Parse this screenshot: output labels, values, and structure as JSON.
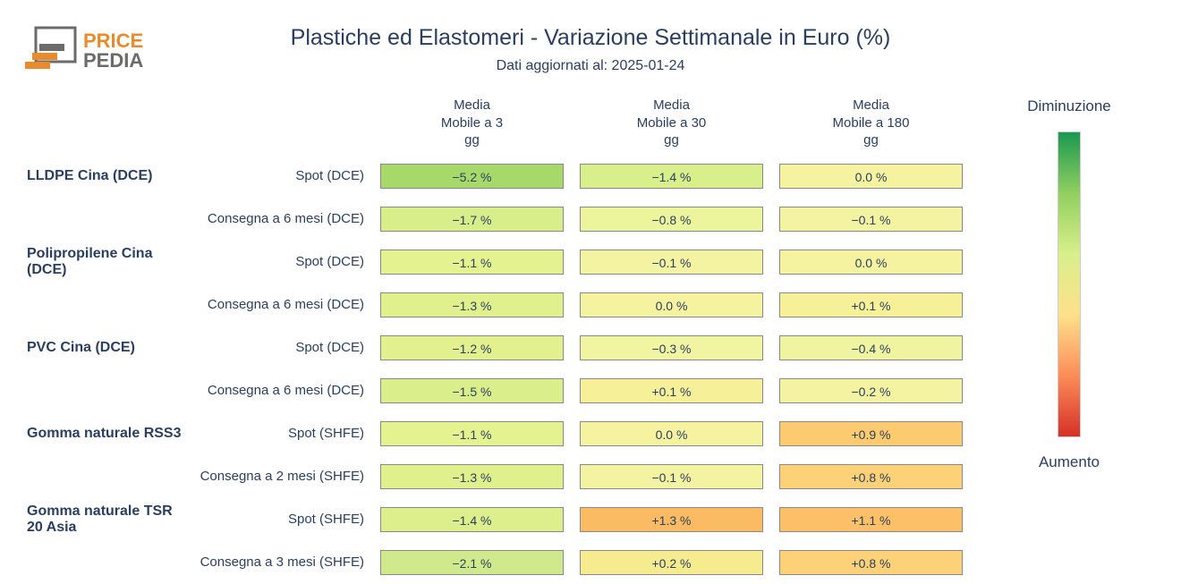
{
  "logo": {
    "text_top": "PRICE",
    "text_bottom": "PEDIA",
    "color_top": "#e88b2e",
    "color_bottom": "#6b6b6b",
    "icon_colors": {
      "outer_border": "#6b6b6b",
      "bar1": "#e88b2e",
      "bar2": "#e88b2e",
      "bar3": "#6b6b6b"
    }
  },
  "title": "Plastiche ed Elastomeri - Variazione Settimanale in Euro (%)",
  "subtitle": "Dati aggiornati al: 2025-01-24",
  "legend": {
    "top_label": "Diminuzione",
    "bottom_label": "Aumento",
    "gradient_stops": [
      "#1a9850",
      "#91cf60",
      "#d9ef8b",
      "#fee08b",
      "#fc8d59",
      "#d73027"
    ]
  },
  "columns": [
    "Media\nMobile a 3\ngg",
    "Media\nMobile a 30\ngg",
    "Media\nMobile a 180\ngg"
  ],
  "color_scale": {
    "comment": "Maps percentage value to background color (green=negative/decrease, red=positive/increase)",
    "breakpoints": [
      {
        "v": -5.5,
        "c": "#a6d96a"
      },
      {
        "v": -2.0,
        "c": "#d2e98e"
      },
      {
        "v": -1.5,
        "c": "#d9ef8b"
      },
      {
        "v": -1.0,
        "c": "#e6f392"
      },
      {
        "v": -0.5,
        "c": "#eef5a0"
      },
      {
        "v": 0.0,
        "c": "#f5f3a0"
      },
      {
        "v": 0.2,
        "c": "#f7eb90"
      },
      {
        "v": 0.5,
        "c": "#fae187"
      },
      {
        "v": 0.8,
        "c": "#fcd178"
      },
      {
        "v": 1.0,
        "c": "#fcc46a"
      },
      {
        "v": 1.5,
        "c": "#fbb460"
      }
    ]
  },
  "rows": [
    {
      "group": "LLDPE Cina (DCE)",
      "sub": "Spot (DCE)",
      "values": [
        -5.2,
        -1.4,
        0.0
      ],
      "colors": [
        "#a6d96a",
        "#d9ef8b",
        "#f5f3a0"
      ]
    },
    {
      "group": "",
      "sub": "Consegna a 6 mesi (DCE)",
      "values": [
        -1.7,
        -0.8,
        -0.1
      ],
      "colors": [
        "#d7ee8a",
        "#ecf49c",
        "#f4f3a2"
      ]
    },
    {
      "group": "Polipropilene Cina (DCE)",
      "sub": "Spot (DCE)",
      "values": [
        -1.1,
        -0.1,
        0.0
      ],
      "colors": [
        "#e4f290",
        "#f4f3a2",
        "#f5f3a0"
      ]
    },
    {
      "group": "",
      "sub": "Consegna a 6 mesi (DCE)",
      "values": [
        -1.3,
        0.0,
        0.1
      ],
      "colors": [
        "#e0f08d",
        "#f5f3a0",
        "#f6f098"
      ]
    },
    {
      "group": "PVC Cina (DCE)",
      "sub": "Spot (DCE)",
      "values": [
        -1.2,
        -0.3,
        -0.4
      ],
      "colors": [
        "#e2f18e",
        "#f1f4a1",
        "#f0f4a0"
      ]
    },
    {
      "group": "",
      "sub": "Consegna a 6 mesi (DCE)",
      "values": [
        -1.5,
        0.1,
        -0.2
      ],
      "colors": [
        "#daef8b",
        "#f6f098",
        "#f3f3a1"
      ]
    },
    {
      "group": "Gomma naturale RSS3",
      "sub": "Spot (SHFE)",
      "values": [
        -1.1,
        0.0,
        0.9
      ],
      "colors": [
        "#e4f290",
        "#f5f3a0",
        "#fccb70"
      ]
    },
    {
      "group": "",
      "sub": "Consegna a 2 mesi (SHFE)",
      "values": [
        -1.3,
        -0.1,
        0.8
      ],
      "colors": [
        "#e0f08d",
        "#f4f3a2",
        "#fcd178"
      ]
    },
    {
      "group": "Gomma naturale TSR 20 Asia",
      "sub": "Spot (SHFE)",
      "values": [
        -1.4,
        1.3,
        1.1
      ],
      "colors": [
        "#ddef8c",
        "#fbbb63",
        "#fcc168"
      ]
    },
    {
      "group": "",
      "sub": "Consegna a 3 mesi (SHFE)",
      "values": [
        -2.1,
        0.2,
        0.8
      ],
      "colors": [
        "#d0e98c",
        "#f7eb90",
        "#fcd178"
      ]
    }
  ],
  "cell_border_color": "#888888",
  "text_color": "#2a3f5f",
  "background_color": "#ffffff"
}
